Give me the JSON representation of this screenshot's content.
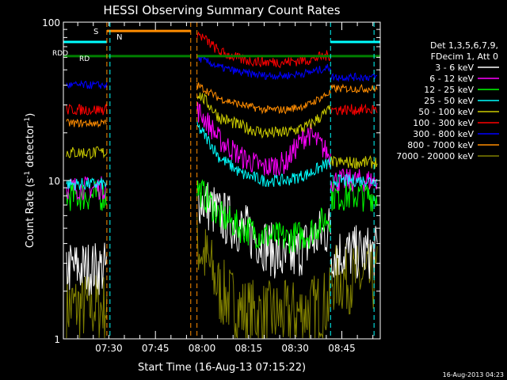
{
  "chart_data": {
    "type": "line",
    "title": "HESSI Observing Summary Count Rates",
    "xlabel": "Start Time (16-Aug-13 07:15:22)",
    "ylabel_main": "Count Rate (s",
    "ylabel_exp1": "-1",
    "ylabel_mid": " detector",
    "ylabel_exp2": "-1",
    "ylabel_end": ")",
    "yscale": "log",
    "ylim": [
      1,
      100
    ],
    "xlim_minutes": [
      0,
      102
    ],
    "y_ticks": [
      "1",
      "10",
      "100"
    ],
    "x_ticks": [
      {
        "label": "07:30",
        "min": 14.63
      },
      {
        "label": "07:45",
        "min": 29.63
      },
      {
        "label": "08:00",
        "min": 44.63
      },
      {
        "label": "08:15",
        "min": 59.63
      },
      {
        "label": "08:30",
        "min": 74.63
      },
      {
        "label": "08:45",
        "min": 89.63
      }
    ],
    "legend_header": [
      "Det 1,3,5,6,7,9,",
      "FDecim 1, Att 0"
    ],
    "series": [
      {
        "name": "3 - 6 keV",
        "color": "#ffffff"
      },
      {
        "name": "6 - 12 keV",
        "color": "#ff00ff"
      },
      {
        "name": "12 - 25 keV",
        "color": "#00ff00"
      },
      {
        "name": "25 - 50 keV",
        "color": "#00ffff"
      },
      {
        "name": "50 - 100 keV",
        "color": "#cccc00"
      },
      {
        "name": "100 - 300 keV",
        "color": "#ff0000"
      },
      {
        "name": "300 - 800 keV",
        "color": "#0000ff"
      },
      {
        "name": "800 - 7000 keV",
        "color": "#ff8c00"
      },
      {
        "name": "7000 - 20000 keV",
        "color": "#808000"
      }
    ],
    "annotations": {
      "S": {
        "text": "S",
        "color": "#ff8c00"
      },
      "N": {
        "text": "N",
        "color": "#00ffff"
      },
      "RDD": {
        "text": "RDD",
        "color": "#008000"
      },
      "RD_label": {
        "text": "RD",
        "color": "#008000"
      }
    },
    "bars": {
      "saa_orange": [
        [
          14,
          41
        ]
      ],
      "night_cyan": [
        [
          0,
          14
        ],
        [
          86,
          102
        ]
      ],
      "rdd_green": [
        [
          0,
          41
        ],
        [
          43,
          102
        ]
      ]
    }
  },
  "timestamp": "16-Aug-2013 04:23"
}
